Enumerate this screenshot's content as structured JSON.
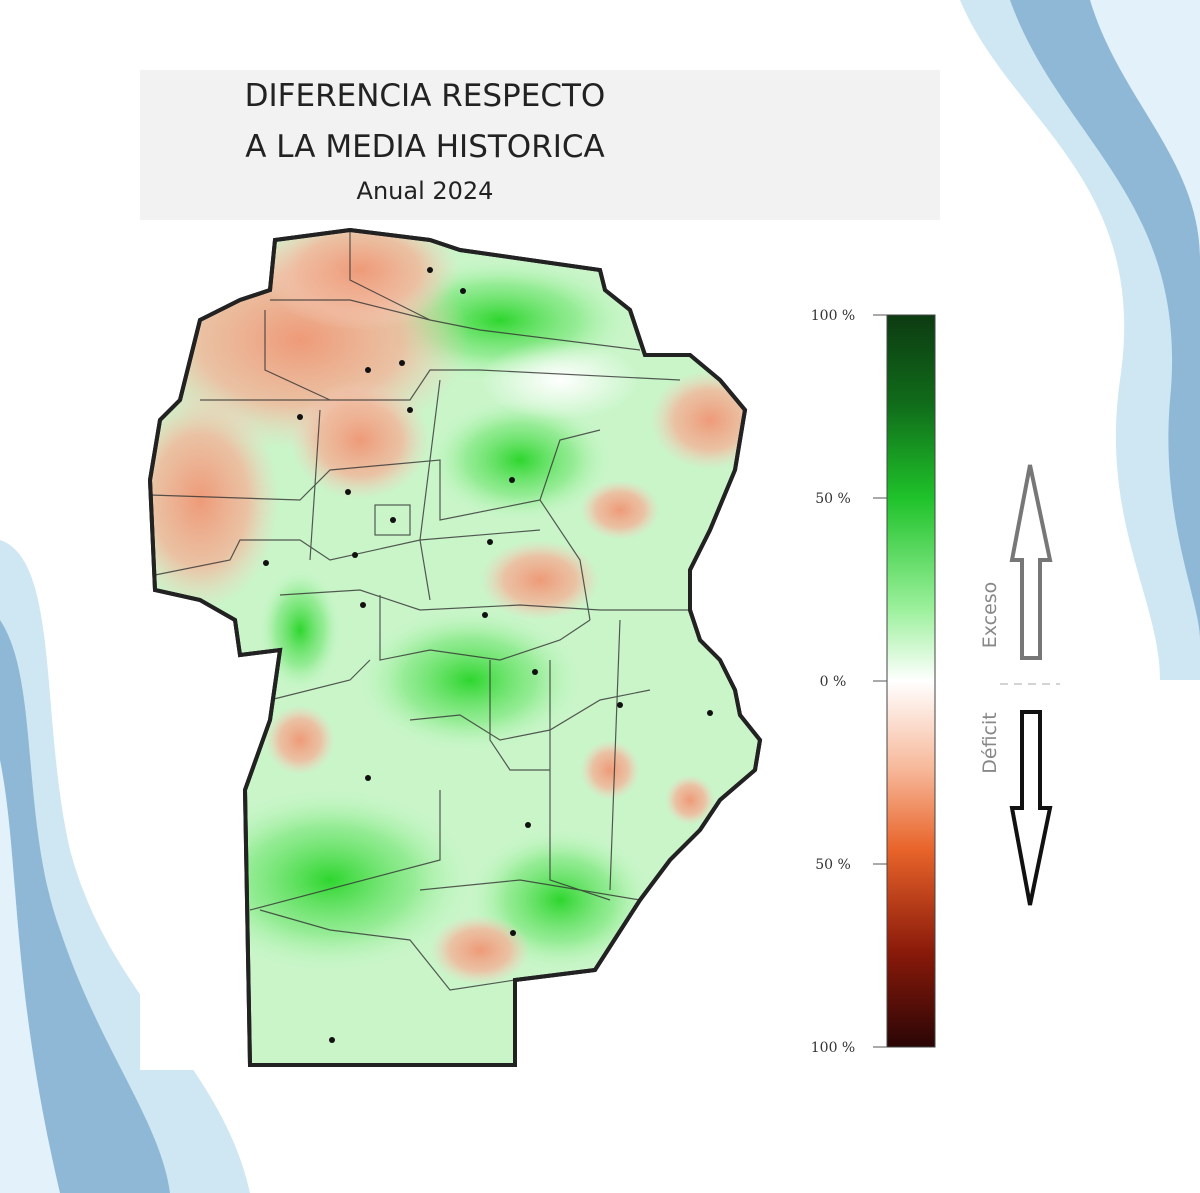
{
  "header": {
    "title_lines": [
      "DIFERENCIA RESPECTO",
      "A LA MEDIA HISTORICA"
    ],
    "subtitle": "Anual 2024"
  },
  "legend": {
    "range": [
      -100,
      100
    ],
    "ticks": [
      {
        "value": 100,
        "label": "100 %"
      },
      {
        "value": 50,
        "label": "50 %"
      },
      {
        "value": 0,
        "label": "0 %"
      },
      {
        "value": -50,
        "label": "50 %"
      },
      {
        "value": -100,
        "label": "100 %"
      }
    ],
    "excess": "Exceso",
    "deficit": "Déficit"
  }
}
